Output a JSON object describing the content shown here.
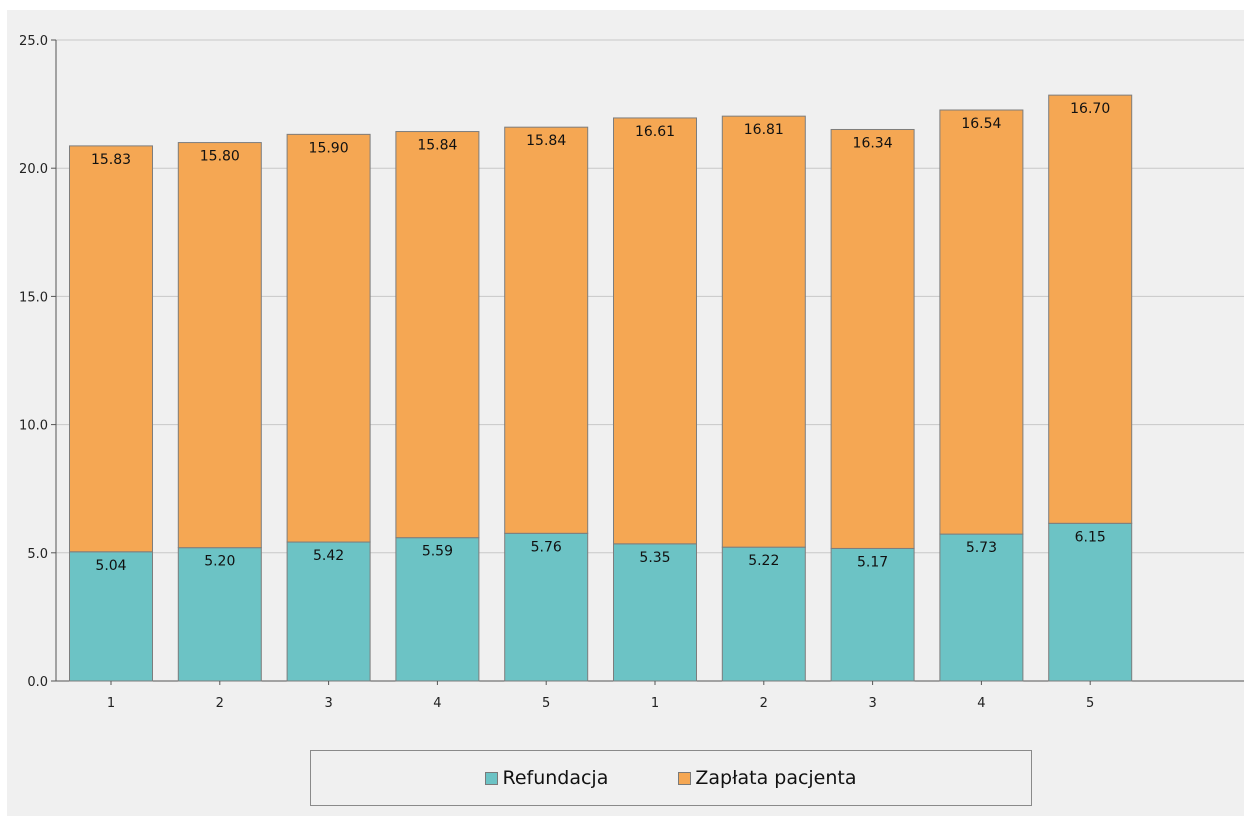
{
  "chart_data": {
    "type": "bar",
    "stacked": true,
    "title": "",
    "xlabel": "",
    "ylabel": "",
    "categories": [
      "1",
      "2",
      "3",
      "4",
      "5",
      "1",
      "2",
      "3",
      "4",
      "5"
    ],
    "series": [
      {
        "name": "Refundacja",
        "color": "#6cc3c5",
        "values": [
          5.04,
          5.2,
          5.42,
          5.59,
          5.76,
          5.35,
          5.22,
          5.17,
          5.73,
          6.15
        ],
        "labels": [
          "5.04",
          "5.20",
          "5.42",
          "5.59",
          "5.76",
          "5.35",
          "5.22",
          "5.17",
          "5.73",
          "6.15"
        ]
      },
      {
        "name": "Zapłata pacjenta",
        "color": "#f5a753",
        "values": [
          15.83,
          15.8,
          15.9,
          15.84,
          15.84,
          16.61,
          16.81,
          16.34,
          16.54,
          16.7
        ],
        "labels": [
          "15.83",
          "15.80",
          "15.90",
          "15.84",
          "15.84",
          "16.61",
          "16.81",
          "16.34",
          "16.54",
          "16.70"
        ]
      }
    ],
    "ylim": [
      0,
      25
    ],
    "yticks": [
      0,
      5,
      10,
      15,
      20,
      25
    ],
    "ytick_labels": [
      "0.0",
      "5.0",
      "10.0",
      "15.0",
      "20.0",
      "25.0"
    ],
    "grid": true,
    "legend_position": "bottom"
  }
}
